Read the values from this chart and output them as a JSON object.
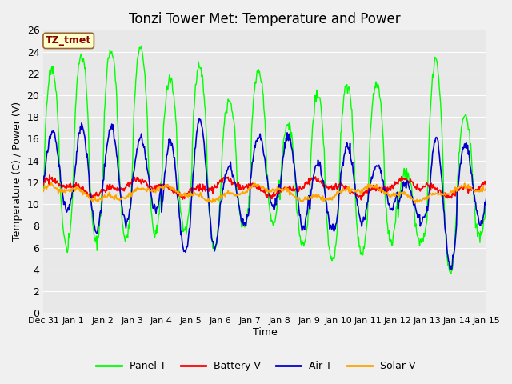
{
  "title": "Tonzi Tower Met: Temperature and Power",
  "xlabel": "Time",
  "ylabel": "Temperature (C) / Power (V)",
  "annotation": "TZ_tmet",
  "ylim": [
    0,
    26
  ],
  "yticks": [
    0,
    2,
    4,
    6,
    8,
    10,
    12,
    14,
    16,
    18,
    20,
    22,
    24,
    26
  ],
  "xtick_labels": [
    "Dec 31",
    "Jan 1",
    "Jan 2",
    "Jan 3",
    "Jan 4",
    "Jan 5",
    "Jan 6",
    "Jan 7",
    "Jan 8",
    "Jan 9",
    "Jan 10",
    "Jan 11",
    "Jan 12",
    "Jan 13",
    "Jan 14",
    "Jan 15"
  ],
  "colors": {
    "panel_t": "#00FF00",
    "battery_v": "#FF0000",
    "air_t": "#0000CC",
    "solar_v": "#FFA500"
  },
  "legend_labels": [
    "Panel T",
    "Battery V",
    "Air T",
    "Solar V"
  ],
  "bg_plot": "#E8E8E8",
  "bg_outer": "#F0F0F0",
  "grid_color": "#FFFFFF",
  "title_fontsize": 12,
  "label_fontsize": 9,
  "tick_fontsize": 9,
  "annot_fontsize": 9,
  "panel_peaks": [
    22.5,
    23.8,
    24.2,
    24.3,
    21.5,
    22.8,
    19.5,
    22.3,
    17.3,
    20.0,
    21.0,
    21.0,
    13.0,
    23.0,
    18.0
  ],
  "panel_troughs": [
    6.0,
    6.5,
    6.8,
    7.3,
    7.5,
    6.0,
    7.8,
    8.2,
    6.3,
    4.8,
    5.3,
    6.5,
    6.5,
    3.7,
    7.0
  ],
  "air_peaks": [
    16.7,
    17.1,
    17.1,
    16.0,
    15.7,
    17.7,
    13.5,
    16.3,
    16.4,
    13.9,
    15.3,
    13.5,
    11.9,
    16.0,
    15.5
  ],
  "air_troughs": [
    9.5,
    7.5,
    8.2,
    9.5,
    5.7,
    6.0,
    8.2,
    9.7,
    7.8,
    7.5,
    8.2,
    9.6,
    8.5,
    4.2,
    8.2
  ],
  "battery_base": 11.5,
  "battery_amp": 0.5,
  "solar_base": 11.0,
  "solar_amp": 0.5
}
